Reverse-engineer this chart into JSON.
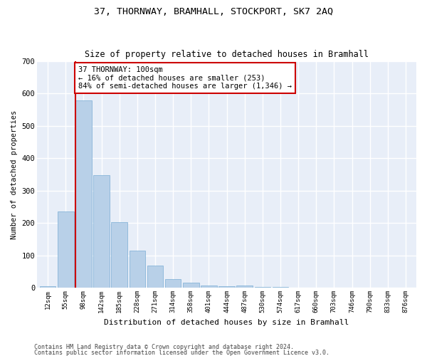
{
  "title1": "37, THORNWAY, BRAMHALL, STOCKPORT, SK7 2AQ",
  "title2": "Size of property relative to detached houses in Bramhall",
  "xlabel": "Distribution of detached houses by size in Bramhall",
  "ylabel": "Number of detached properties",
  "bar_color": "#b8d0e8",
  "bar_edge_color": "#7aadd4",
  "bg_color": "#e8eef8",
  "grid_color": "#ffffff",
  "categories": [
    "12sqm",
    "55sqm",
    "98sqm",
    "142sqm",
    "185sqm",
    "228sqm",
    "271sqm",
    "314sqm",
    "358sqm",
    "401sqm",
    "444sqm",
    "487sqm",
    "530sqm",
    "574sqm",
    "617sqm",
    "660sqm",
    "703sqm",
    "746sqm",
    "790sqm",
    "833sqm",
    "876sqm"
  ],
  "values": [
    5,
    235,
    580,
    348,
    202,
    115,
    68,
    27,
    15,
    7,
    5,
    7,
    3,
    2,
    0,
    0,
    0,
    0,
    0,
    0,
    0
  ],
  "property_line_x": 2,
  "annotation_text": "37 THORNWAY: 100sqm\n← 16% of detached houses are smaller (253)\n84% of semi-detached houses are larger (1,346) →",
  "annotation_box_color": "#cc0000",
  "ylim": [
    0,
    700
  ],
  "yticks": [
    0,
    100,
    200,
    300,
    400,
    500,
    600,
    700
  ],
  "footer1": "Contains HM Land Registry data © Crown copyright and database right 2024.",
  "footer2": "Contains public sector information licensed under the Open Government Licence v3.0."
}
